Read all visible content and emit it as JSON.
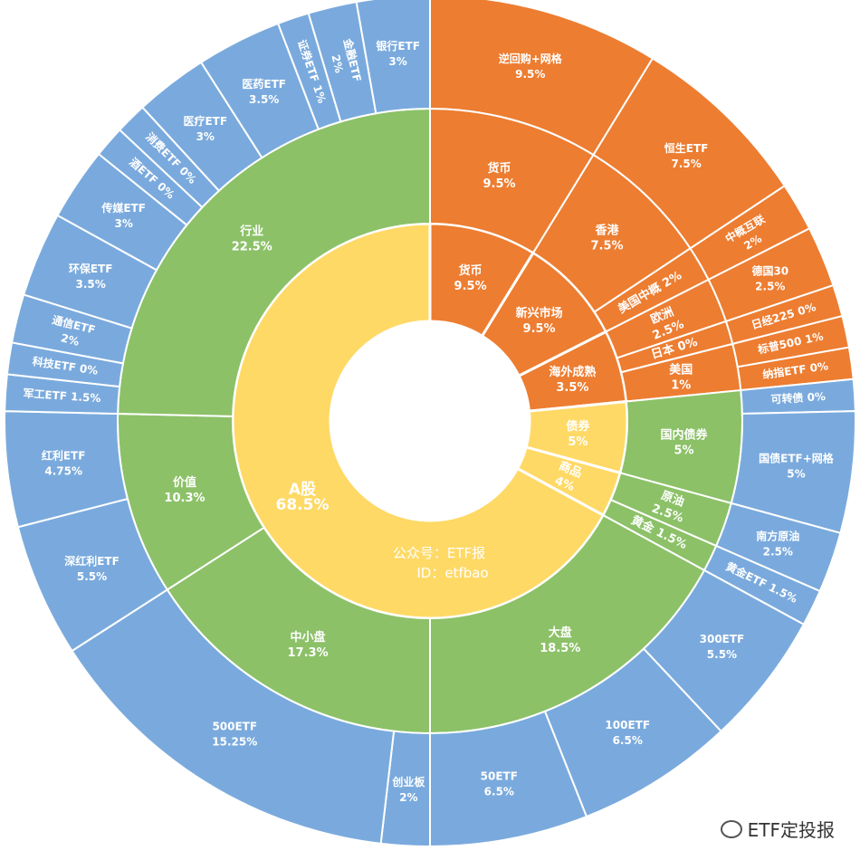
{
  "chart_data": {
    "type": "sunburst",
    "colors": {
      "orange": "#ED7D31",
      "green": "#8CC168",
      "yellow": "#FFD966",
      "blue": "#7AAADD"
    },
    "center_note": [
      "公众号：ETF报",
      "ID：etfbao"
    ],
    "children": [
      {
        "name": "货币",
        "value": 9.5,
        "label": "9.5%",
        "color": "orange",
        "children": [
          {
            "name": "货币",
            "value": 9.5,
            "label": "9.5%",
            "children": [
              {
                "name": "逆回购+网格",
                "value": 9.5,
                "label": "9.5%"
              }
            ]
          }
        ]
      },
      {
        "name": "新兴市场",
        "value": 9.5,
        "label": "9.5%",
        "color": "orange",
        "children": [
          {
            "name": "香港",
            "value": 7.5,
            "label": "7.5%",
            "children": [
              {
                "name": "恒生ETF",
                "value": 7.5,
                "label": "7.5%"
              }
            ]
          },
          {
            "name": "美国中概",
            "value": 2,
            "label": "2%",
            "children": [
              {
                "name": "中概互联",
                "value": 2,
                "label": "2%"
              }
            ]
          }
        ]
      },
      {
        "name": "海外成熟",
        "value": 3.5,
        "label": "3.5%",
        "color": "orange",
        "children": [
          {
            "name": "欧洲",
            "value": 2.5,
            "label": "2.5%",
            "children": [
              {
                "name": "德国30",
                "value": 2.5,
                "label": "2.5%"
              }
            ]
          },
          {
            "name": "日本",
            "value": 0,
            "label": "0%",
            "children": [
              {
                "name": "日经225",
                "value": 0,
                "label": "0%"
              }
            ]
          },
          {
            "name": "美国",
            "value": 1,
            "label": "1%",
            "children": [
              {
                "name": "标普500",
                "value": 1,
                "label": "1%"
              },
              {
                "name": "纳指ETF",
                "value": 0,
                "label": "0%"
              }
            ]
          }
        ]
      },
      {
        "name": "债券",
        "value": 5,
        "label": "5%",
        "color": "yellow",
        "children": [
          {
            "name": "国内债券",
            "value": 5,
            "label": "5%",
            "children": [
              {
                "name": "可转债",
                "value": 0,
                "label": "0%"
              },
              {
                "name": "国债ETF+网格",
                "value": 5,
                "label": "5%"
              }
            ]
          }
        ]
      },
      {
        "name": "商品",
        "value": 4,
        "label": "4%",
        "color": "yellow",
        "children": [
          {
            "name": "原油",
            "value": 2.5,
            "label": "2.5%",
            "children": [
              {
                "name": "南方原油",
                "value": 2.5,
                "label": "2.5%"
              }
            ]
          },
          {
            "name": "黄金",
            "value": 1.5,
            "label": "1.5%",
            "children": [
              {
                "name": "黄金ETF",
                "value": 1.5,
                "label": "1.5%"
              }
            ]
          }
        ]
      },
      {
        "name": "A股",
        "value": 68.5,
        "label": "68.5%",
        "color": "yellow",
        "children": [
          {
            "name": "大盘",
            "value": 18.5,
            "label": "18.5%",
            "children": [
              {
                "name": "300ETF",
                "value": 5.5,
                "label": "5.5%"
              },
              {
                "name": "100ETF",
                "value": 6.5,
                "label": "6.5%"
              },
              {
                "name": "50ETF",
                "value": 6.5,
                "label": "6.5%"
              }
            ]
          },
          {
            "name": "中小盘",
            "value": 17.3,
            "label": "17.3%",
            "children": [
              {
                "name": "创业板",
                "value": 2,
                "label": "2%"
              },
              {
                "name": "500ETF",
                "value": 15.25,
                "label": "15.25%"
              }
            ]
          },
          {
            "name": "价值",
            "value": 10.3,
            "label": "10.3%",
            "children": [
              {
                "name": "深红利ETF",
                "value": 5.5,
                "label": "5.5%"
              },
              {
                "name": "红利ETF",
                "value": 4.75,
                "label": "4.75%"
              }
            ]
          },
          {
            "name": "行业",
            "value": 22.5,
            "label": "22.5%",
            "children": [
              {
                "name": "军工ETF",
                "value": 1.5,
                "label": "1.5%"
              },
              {
                "name": "科技ETF",
                "value": 0,
                "label": "0%"
              },
              {
                "name": "通信ETF",
                "value": 2,
                "label": "2%"
              },
              {
                "name": "环保ETF",
                "value": 3.5,
                "label": "3.5%"
              },
              {
                "name": "传媒ETF",
                "value": 3,
                "label": "3%"
              },
              {
                "name": "酒ETF",
                "value": 0,
                "label": "0%"
              },
              {
                "name": "消费ETF",
                "value": 0,
                "label": "0%"
              },
              {
                "name": "医疗ETF",
                "value": 3,
                "label": "3%"
              },
              {
                "name": "医药ETF",
                "value": 3.5,
                "label": "3.5%"
              },
              {
                "name": "证券ETF",
                "value": 1,
                "label": "1%"
              },
              {
                "name": "金融ETF",
                "value": 2,
                "label": "2%"
              },
              {
                "name": "银行ETF",
                "value": 3,
                "label": "3%"
              }
            ]
          }
        ]
      }
    ]
  },
  "watermark": "ETF定投报"
}
